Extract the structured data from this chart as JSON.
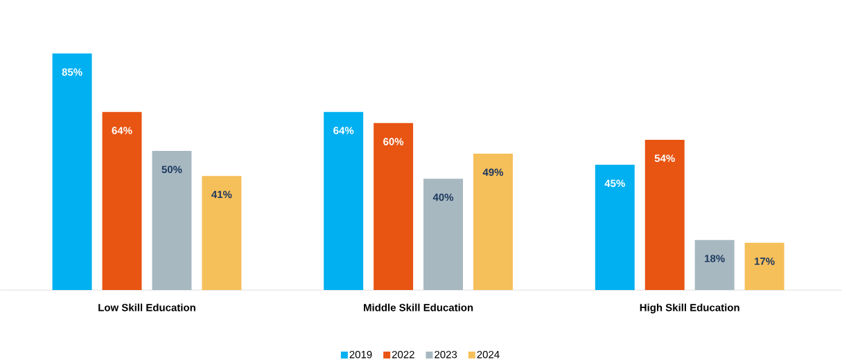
{
  "chart_data": {
    "type": "bar",
    "categories": [
      "Low Skill Education",
      "Middle Skill Education",
      "High Skill Education"
    ],
    "series": [
      {
        "name": "2019",
        "color": "#00b0f0",
        "values": [
          85,
          64,
          45
        ],
        "value_labels": [
          "85%",
          "64%",
          "45%"
        ]
      },
      {
        "name": "2022",
        "color": "#e85412",
        "values": [
          64,
          60,
          54
        ],
        "value_labels": [
          "64%",
          "60%",
          "54%"
        ]
      },
      {
        "name": "2023",
        "color": "#a7b8c1",
        "values": [
          50,
          40,
          18
        ],
        "value_labels": [
          "50%",
          "40%",
          "18%"
        ]
      },
      {
        "name": "2024",
        "color": "#f5bf5a",
        "values": [
          41,
          49,
          17
        ],
        "value_labels": [
          "41%",
          "49%",
          "17%"
        ]
      }
    ],
    "legend": "bottom"
  }
}
